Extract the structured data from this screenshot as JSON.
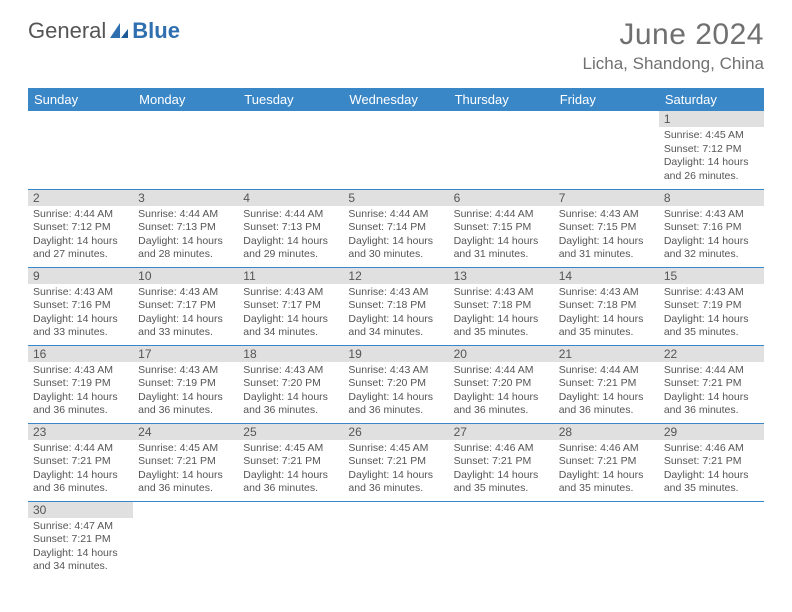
{
  "brand": {
    "part1": "General",
    "part2": "Blue"
  },
  "title": "June 2024",
  "location": "Licha, Shandong, China",
  "colors": {
    "header_bg": "#3a87c8",
    "header_text": "#ffffff",
    "daynum_bg": "#e0e0e0",
    "text": "#555555",
    "rule": "#3a87c8"
  },
  "daysOfWeek": [
    "Sunday",
    "Monday",
    "Tuesday",
    "Wednesday",
    "Thursday",
    "Friday",
    "Saturday"
  ],
  "weeks": [
    [
      null,
      null,
      null,
      null,
      null,
      null,
      {
        "n": "1",
        "r": "Sunrise: 4:45 AM",
        "s": "Sunset: 7:12 PM",
        "d1": "Daylight: 14 hours",
        "d2": "and 26 minutes."
      }
    ],
    [
      {
        "n": "2",
        "r": "Sunrise: 4:44 AM",
        "s": "Sunset: 7:12 PM",
        "d1": "Daylight: 14 hours",
        "d2": "and 27 minutes."
      },
      {
        "n": "3",
        "r": "Sunrise: 4:44 AM",
        "s": "Sunset: 7:13 PM",
        "d1": "Daylight: 14 hours",
        "d2": "and 28 minutes."
      },
      {
        "n": "4",
        "r": "Sunrise: 4:44 AM",
        "s": "Sunset: 7:13 PM",
        "d1": "Daylight: 14 hours",
        "d2": "and 29 minutes."
      },
      {
        "n": "5",
        "r": "Sunrise: 4:44 AM",
        "s": "Sunset: 7:14 PM",
        "d1": "Daylight: 14 hours",
        "d2": "and 30 minutes."
      },
      {
        "n": "6",
        "r": "Sunrise: 4:44 AM",
        "s": "Sunset: 7:15 PM",
        "d1": "Daylight: 14 hours",
        "d2": "and 31 minutes."
      },
      {
        "n": "7",
        "r": "Sunrise: 4:43 AM",
        "s": "Sunset: 7:15 PM",
        "d1": "Daylight: 14 hours",
        "d2": "and 31 minutes."
      },
      {
        "n": "8",
        "r": "Sunrise: 4:43 AM",
        "s": "Sunset: 7:16 PM",
        "d1": "Daylight: 14 hours",
        "d2": "and 32 minutes."
      }
    ],
    [
      {
        "n": "9",
        "r": "Sunrise: 4:43 AM",
        "s": "Sunset: 7:16 PM",
        "d1": "Daylight: 14 hours",
        "d2": "and 33 minutes."
      },
      {
        "n": "10",
        "r": "Sunrise: 4:43 AM",
        "s": "Sunset: 7:17 PM",
        "d1": "Daylight: 14 hours",
        "d2": "and 33 minutes."
      },
      {
        "n": "11",
        "r": "Sunrise: 4:43 AM",
        "s": "Sunset: 7:17 PM",
        "d1": "Daylight: 14 hours",
        "d2": "and 34 minutes."
      },
      {
        "n": "12",
        "r": "Sunrise: 4:43 AM",
        "s": "Sunset: 7:18 PM",
        "d1": "Daylight: 14 hours",
        "d2": "and 34 minutes."
      },
      {
        "n": "13",
        "r": "Sunrise: 4:43 AM",
        "s": "Sunset: 7:18 PM",
        "d1": "Daylight: 14 hours",
        "d2": "and 35 minutes."
      },
      {
        "n": "14",
        "r": "Sunrise: 4:43 AM",
        "s": "Sunset: 7:18 PM",
        "d1": "Daylight: 14 hours",
        "d2": "and 35 minutes."
      },
      {
        "n": "15",
        "r": "Sunrise: 4:43 AM",
        "s": "Sunset: 7:19 PM",
        "d1": "Daylight: 14 hours",
        "d2": "and 35 minutes."
      }
    ],
    [
      {
        "n": "16",
        "r": "Sunrise: 4:43 AM",
        "s": "Sunset: 7:19 PM",
        "d1": "Daylight: 14 hours",
        "d2": "and 36 minutes."
      },
      {
        "n": "17",
        "r": "Sunrise: 4:43 AM",
        "s": "Sunset: 7:19 PM",
        "d1": "Daylight: 14 hours",
        "d2": "and 36 minutes."
      },
      {
        "n": "18",
        "r": "Sunrise: 4:43 AM",
        "s": "Sunset: 7:20 PM",
        "d1": "Daylight: 14 hours",
        "d2": "and 36 minutes."
      },
      {
        "n": "19",
        "r": "Sunrise: 4:43 AM",
        "s": "Sunset: 7:20 PM",
        "d1": "Daylight: 14 hours",
        "d2": "and 36 minutes."
      },
      {
        "n": "20",
        "r": "Sunrise: 4:44 AM",
        "s": "Sunset: 7:20 PM",
        "d1": "Daylight: 14 hours",
        "d2": "and 36 minutes."
      },
      {
        "n": "21",
        "r": "Sunrise: 4:44 AM",
        "s": "Sunset: 7:21 PM",
        "d1": "Daylight: 14 hours",
        "d2": "and 36 minutes."
      },
      {
        "n": "22",
        "r": "Sunrise: 4:44 AM",
        "s": "Sunset: 7:21 PM",
        "d1": "Daylight: 14 hours",
        "d2": "and 36 minutes."
      }
    ],
    [
      {
        "n": "23",
        "r": "Sunrise: 4:44 AM",
        "s": "Sunset: 7:21 PM",
        "d1": "Daylight: 14 hours",
        "d2": "and 36 minutes."
      },
      {
        "n": "24",
        "r": "Sunrise: 4:45 AM",
        "s": "Sunset: 7:21 PM",
        "d1": "Daylight: 14 hours",
        "d2": "and 36 minutes."
      },
      {
        "n": "25",
        "r": "Sunrise: 4:45 AM",
        "s": "Sunset: 7:21 PM",
        "d1": "Daylight: 14 hours",
        "d2": "and 36 minutes."
      },
      {
        "n": "26",
        "r": "Sunrise: 4:45 AM",
        "s": "Sunset: 7:21 PM",
        "d1": "Daylight: 14 hours",
        "d2": "and 36 minutes."
      },
      {
        "n": "27",
        "r": "Sunrise: 4:46 AM",
        "s": "Sunset: 7:21 PM",
        "d1": "Daylight: 14 hours",
        "d2": "and 35 minutes."
      },
      {
        "n": "28",
        "r": "Sunrise: 4:46 AM",
        "s": "Sunset: 7:21 PM",
        "d1": "Daylight: 14 hours",
        "d2": "and 35 minutes."
      },
      {
        "n": "29",
        "r": "Sunrise: 4:46 AM",
        "s": "Sunset: 7:21 PM",
        "d1": "Daylight: 14 hours",
        "d2": "and 35 minutes."
      }
    ],
    [
      {
        "n": "30",
        "r": "Sunrise: 4:47 AM",
        "s": "Sunset: 7:21 PM",
        "d1": "Daylight: 14 hours",
        "d2": "and 34 minutes."
      },
      null,
      null,
      null,
      null,
      null,
      null
    ]
  ]
}
